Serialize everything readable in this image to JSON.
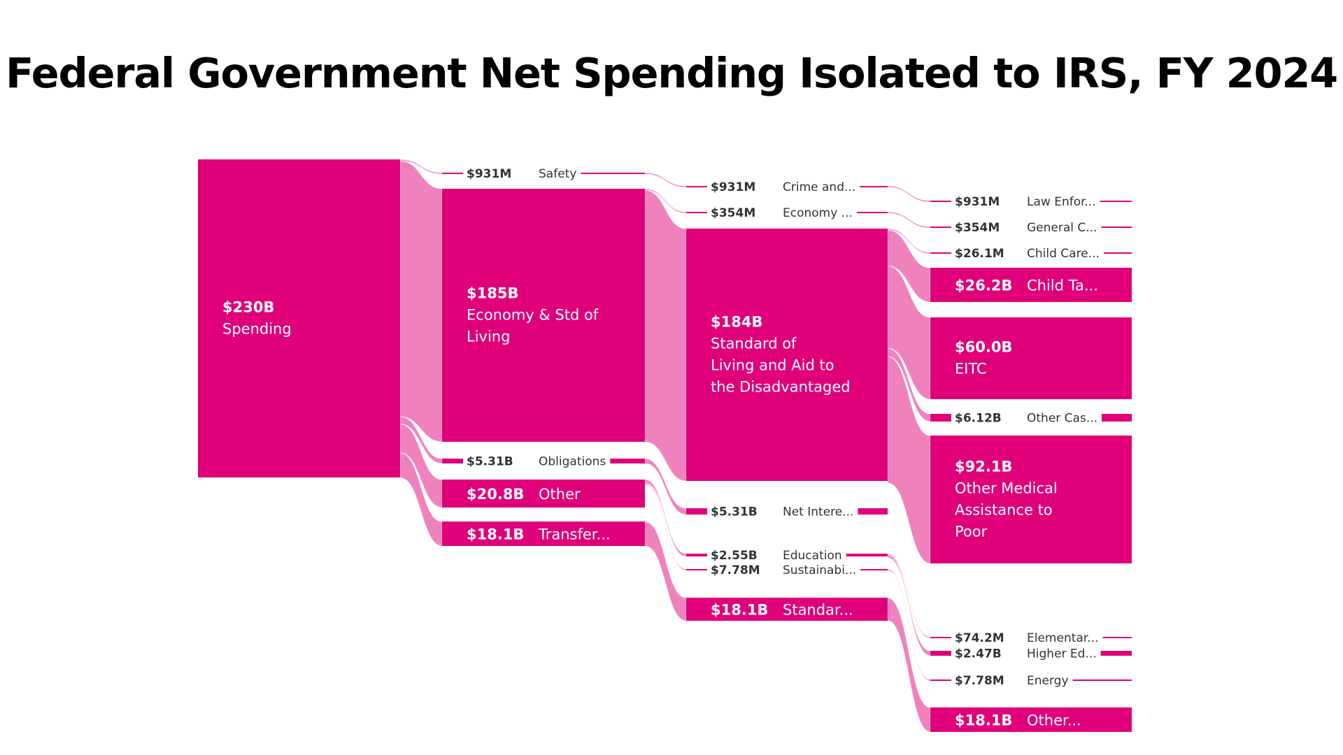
{
  "title": "Federal Government Net Spending Isolated to IRS, FY 2024",
  "colors": {
    "node": "#e0007a",
    "link": "#ef82bc",
    "text_dark": "#333333",
    "text_light": "#ffffff"
  },
  "chart_data": {
    "type": "sankey",
    "title": "Federal Government Net Spending Isolated to IRS, FY 2024",
    "unit": "USD",
    "nodes": [
      {
        "id": "spending",
        "column": 0,
        "value_label": "$230B",
        "label": "Spending",
        "value": 230000
      },
      {
        "id": "safety",
        "column": 1,
        "value_label": "$931M",
        "label": "Safety",
        "value": 931
      },
      {
        "id": "econ_std",
        "column": 1,
        "value_label": "$185B",
        "label": "Economy & Std of Living",
        "value": 185000
      },
      {
        "id": "obligations",
        "column": 1,
        "value_label": "$5.31B",
        "label": "Obligations",
        "value": 5310
      },
      {
        "id": "other1",
        "column": 1,
        "value_label": "$20.8B",
        "label": "Other",
        "value": 20800
      },
      {
        "id": "transfer",
        "column": 1,
        "value_label": "$18.1B",
        "label": "Transfer...",
        "value": 18100
      },
      {
        "id": "crime",
        "column": 2,
        "value_label": "$931M",
        "label": "Crime and...",
        "value": 931
      },
      {
        "id": "economy",
        "column": 2,
        "value_label": "$354M",
        "label": "Economy ...",
        "value": 354
      },
      {
        "id": "std_aid",
        "column": 2,
        "value_label": "$184B",
        "label": "Standard of Living and Aid to the Disadvantaged",
        "value": 184000
      },
      {
        "id": "net_interest",
        "column": 2,
        "value_label": "$5.31B",
        "label": "Net Intere...",
        "value": 5310
      },
      {
        "id": "education",
        "column": 2,
        "value_label": "$2.55B",
        "label": "Education",
        "value": 2550
      },
      {
        "id": "sustain",
        "column": 2,
        "value_label": "$7.78M",
        "label": "Sustainabi...",
        "value": 7.78
      },
      {
        "id": "standar",
        "column": 2,
        "value_label": "$18.1B",
        "label": "Standar...",
        "value": 18100
      },
      {
        "id": "law",
        "column": 3,
        "value_label": "$931M",
        "label": "Law Enfor...",
        "value": 931
      },
      {
        "id": "general",
        "column": 3,
        "value_label": "$354M",
        "label": "General C...",
        "value": 354
      },
      {
        "id": "childcare",
        "column": 3,
        "value_label": "$26.1M",
        "label": "Child Care...",
        "value": 26.1
      },
      {
        "id": "childtax",
        "column": 3,
        "value_label": "$26.2B",
        "label": "Child Ta...",
        "value": 26200
      },
      {
        "id": "eitc",
        "column": 3,
        "value_label": "$60.0B",
        "label": "EITC",
        "value": 60000
      },
      {
        "id": "othercash",
        "column": 3,
        "value_label": "$6.12B",
        "label": "Other Cas...",
        "value": 6120
      },
      {
        "id": "othermed",
        "column": 3,
        "value_label": "$92.1B",
        "label": "Other Medical Assistance to Poor",
        "value": 92100
      },
      {
        "id": "elementary",
        "column": 3,
        "value_label": "$74.2M",
        "label": "Elementar...",
        "value": 74.2
      },
      {
        "id": "highered",
        "column": 3,
        "value_label": "$2.47B",
        "label": "Higher Ed...",
        "value": 2470
      },
      {
        "id": "energy",
        "column": 3,
        "value_label": "$7.78M",
        "label": "Energy",
        "value": 7.78
      },
      {
        "id": "other4",
        "column": 3,
        "value_label": "$18.1B",
        "label": "Other...",
        "value": 18100
      }
    ],
    "links": [
      {
        "source": "spending",
        "target": "safety",
        "value": 931
      },
      {
        "source": "spending",
        "target": "econ_std",
        "value": 185000
      },
      {
        "source": "spending",
        "target": "obligations",
        "value": 5310
      },
      {
        "source": "spending",
        "target": "other1",
        "value": 20800
      },
      {
        "source": "spending",
        "target": "transfer",
        "value": 18100
      },
      {
        "source": "safety",
        "target": "crime",
        "value": 931
      },
      {
        "source": "econ_std",
        "target": "economy",
        "value": 354
      },
      {
        "source": "econ_std",
        "target": "std_aid",
        "value": 184000
      },
      {
        "source": "obligations",
        "target": "net_interest",
        "value": 5310
      },
      {
        "source": "other1",
        "target": "education",
        "value": 2550
      },
      {
        "source": "other1",
        "target": "sustain",
        "value": 7.78
      },
      {
        "source": "transfer",
        "target": "standar",
        "value": 18100
      },
      {
        "source": "crime",
        "target": "law",
        "value": 931
      },
      {
        "source": "economy",
        "target": "general",
        "value": 354
      },
      {
        "source": "std_aid",
        "target": "childcare",
        "value": 26.1
      },
      {
        "source": "std_aid",
        "target": "childtax",
        "value": 26200
      },
      {
        "source": "std_aid",
        "target": "eitc",
        "value": 60000
      },
      {
        "source": "std_aid",
        "target": "othercash",
        "value": 6120
      },
      {
        "source": "std_aid",
        "target": "othermed",
        "value": 92100
      },
      {
        "source": "education",
        "target": "elementary",
        "value": 74.2
      },
      {
        "source": "education",
        "target": "highered",
        "value": 2470
      },
      {
        "source": "sustain",
        "target": "energy",
        "value": 7.78
      },
      {
        "source": "standar",
        "target": "other4",
        "value": 18100
      }
    ]
  }
}
